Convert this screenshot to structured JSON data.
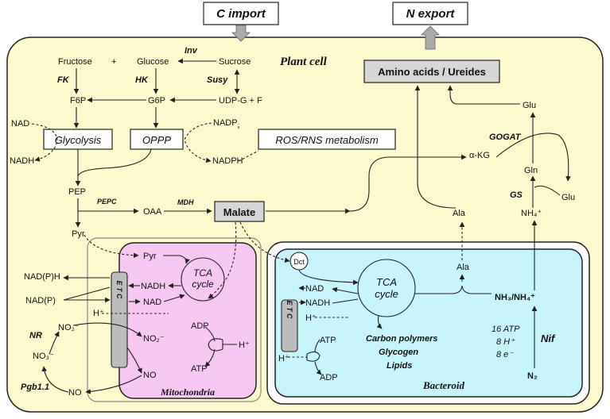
{
  "top": {
    "c_import": "C import",
    "n_export": "N export"
  },
  "compartments": {
    "plant_cell": "Plant cell",
    "mitochondria": "Mitochondria",
    "bacteroid": "Bacteroid"
  },
  "boxes": {
    "glycolysis": "Glycolysis",
    "oppp": "OPPP",
    "ros": "ROS/RNS metabolism",
    "malate": "Malate",
    "amino": "Amino acids / Ureides",
    "etc_m": "E T C",
    "etc_b": "E T C",
    "dct": "Dct",
    "tca_m": "TCA cycle",
    "tca_b": "TCA cycle"
  },
  "metabolites": {
    "fructose": "Fructose",
    "plus1": "+",
    "glucose": "Glucose",
    "sucrose": "Sucrose",
    "f6p": "F6P",
    "g6p": "G6P",
    "udpg": "UDP-G + F",
    "nad_top": "NAD",
    "nadh_top": "NADH",
    "nadp": "NADP",
    "nadph": "NADPH",
    "pep": "PEP",
    "oaa": "OAA",
    "pyr": "Pyr",
    "pyr_m": "Pyr",
    "akg": "α-KG",
    "glu_top": "Glu",
    "gln": "Gln",
    "glu_right": "Glu",
    "nh4": "NH₄⁺",
    "ala_cell": "Ala",
    "ala_bact": "Ala",
    "nadph_l": "NAD(P)H",
    "nadp_l": "NAD(P)",
    "nadh_m": "NADH",
    "nad_m": "NAD",
    "h_m": "H⁺",
    "adp_m": "ADP",
    "atp_m": "ATP",
    "h_m2": "H⁺",
    "no2_m": "NO₂⁻",
    "no_m": "NO",
    "no2_c": "NO₂⁻",
    "no3_c": "NO₃⁻",
    "no_c": "NO",
    "nad_b": "NAD",
    "nadh_b": "NADH",
    "h_b": "H⁺",
    "atp_b": "ATP",
    "h_b2": "H⁺",
    "adp_b": "ADP",
    "nh3": "NH₃/NH₄⁺",
    "n2": "N₂",
    "atp16": "16 ATP",
    "h8": "8 H⁺",
    "e8": "8 e⁻",
    "carbon": "Carbon polymers",
    "glycogen": "Glycogen",
    "lipids": "Lipids"
  },
  "enzymes": {
    "inv": "Inv",
    "fk": "FK",
    "hk": "HK",
    "susy": "Susy",
    "pepc": "PEPC",
    "mdh": "MDH",
    "gogat": "GOGAT",
    "gs": "GS",
    "nr": "NR",
    "pgb": "Pgb1.1",
    "nif": "Nif"
  },
  "colors": {
    "plant_cell_fill": "#fdf9cf",
    "mito_fill": "#f6c8f2",
    "bacteroid_fill": "#c8f4fb",
    "grey_box": "#d6d6d6",
    "etc_fill": "#bdbdbd"
  }
}
